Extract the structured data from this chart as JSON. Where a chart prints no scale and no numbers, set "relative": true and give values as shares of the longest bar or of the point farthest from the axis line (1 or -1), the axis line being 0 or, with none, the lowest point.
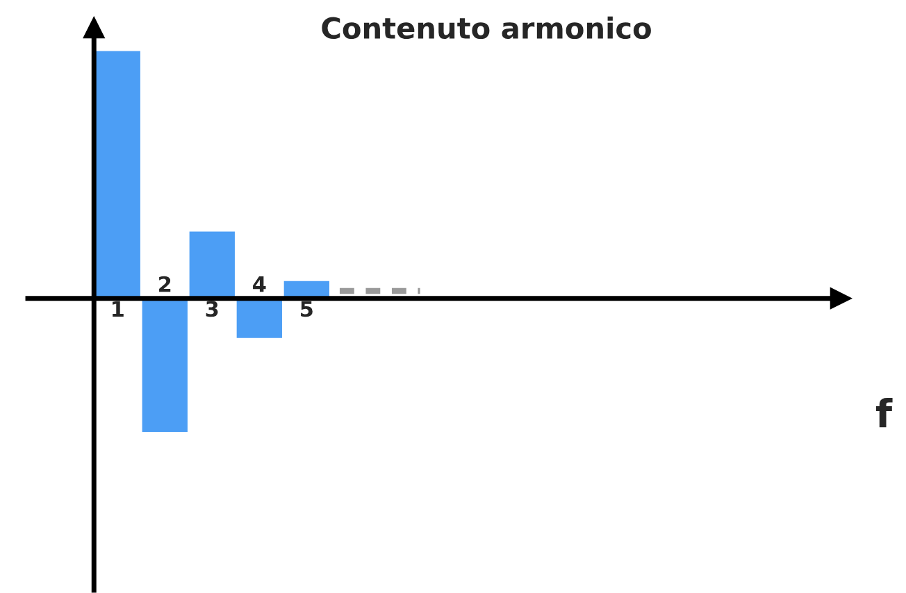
{
  "chart_data": {
    "type": "bar",
    "title": "Contenuto armonico",
    "annotations": [
      "f"
    ],
    "categories": [
      "1",
      "2",
      "3",
      "4",
      "5"
    ],
    "values": [
      1,
      -0.54,
      0.27,
      -0.16,
      0.07
    ],
    "color": "#4c9ef5",
    "relative": true
  }
}
